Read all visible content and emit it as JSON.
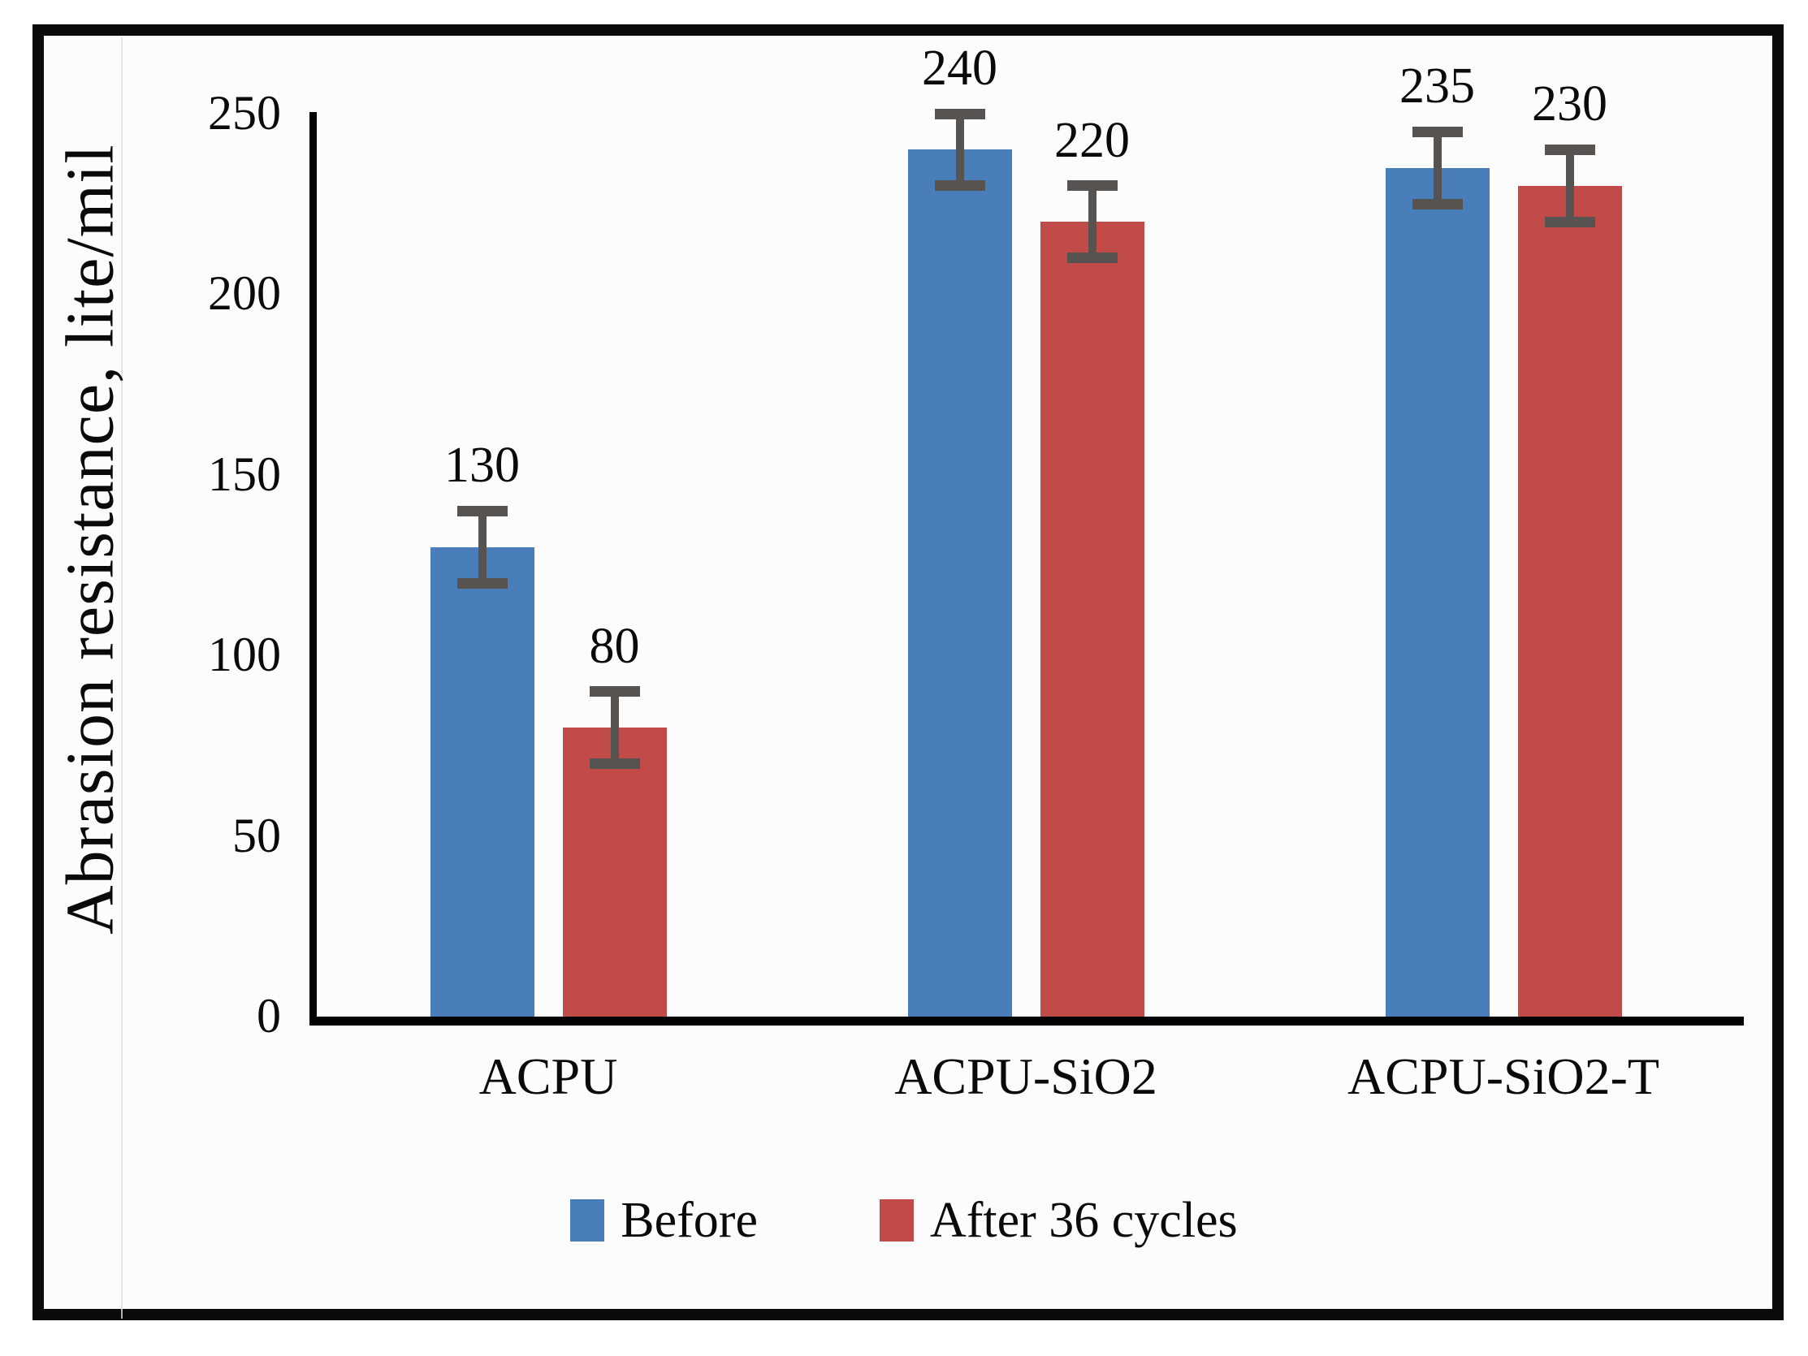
{
  "figure": {
    "background": "#ffffff",
    "inner_background": "#fcfcfc",
    "frame_color": "#0b0b0b",
    "axis_color": "#030303",
    "text_color": "#0a0a0a"
  },
  "chart_data": {
    "type": "bar",
    "title": "",
    "xlabel": "",
    "ylabel": "Abrasion resistance, lite/mil",
    "ylim": [
      0,
      250
    ],
    "yticks": [
      0,
      50,
      100,
      150,
      200,
      250
    ],
    "grid": false,
    "legend_position": "bottom",
    "value_labels": true,
    "error_color": "#565350",
    "categories": [
      "ACPU",
      "ACPU-SiO2",
      "ACPU-SiO2-T"
    ],
    "series": [
      {
        "name": "Before",
        "color": "#4A7EBB",
        "values": [
          130,
          240,
          235
        ],
        "error_bars": [
          10,
          10,
          10
        ]
      },
      {
        "name": "After 36 cycles",
        "color": "#C14B48",
        "values": [
          80,
          220,
          230
        ],
        "error_bars": [
          10,
          10,
          10
        ]
      }
    ]
  }
}
